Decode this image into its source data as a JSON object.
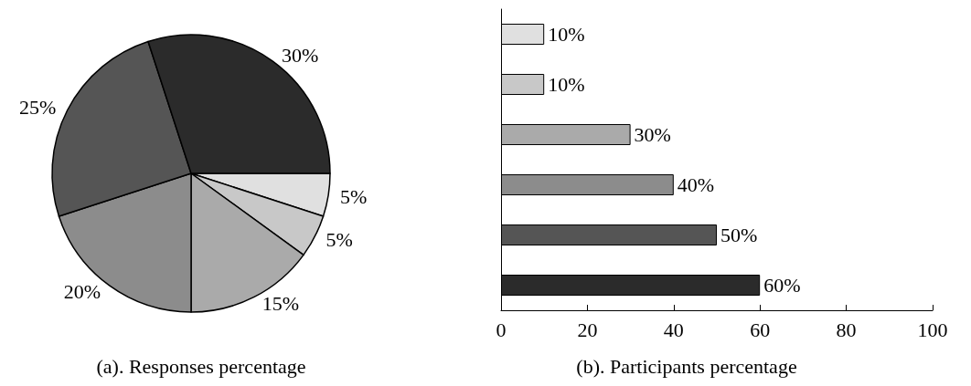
{
  "chart_data": [
    {
      "type": "pie",
      "title": "(a). Responses percentage",
      "categories": [
        null,
        null,
        null,
        null,
        null,
        null
      ],
      "values": [
        5,
        5,
        15,
        20,
        25,
        30
      ],
      "colors": [
        "#e0e0e0",
        "#c8c8c8",
        "#aaaaaa",
        "#8c8c8c",
        "#555555",
        "#2b2b2b"
      ],
      "value_labels": [
        "5%",
        "5%",
        "15%",
        "20%",
        "25%",
        "30%"
      ]
    },
    {
      "type": "bar",
      "title": "(b). Participants percentage",
      "orientation": "horizontal",
      "categories": [
        null,
        null,
        null,
        null,
        null,
        null
      ],
      "values": [
        10,
        10,
        30,
        40,
        50,
        60
      ],
      "colors": [
        "#e0e0e0",
        "#c8c8c8",
        "#aaaaaa",
        "#8c8c8c",
        "#555555",
        "#2b2b2b"
      ],
      "value_labels": [
        "10%",
        "10%",
        "30%",
        "40%",
        "50%",
        "60%"
      ],
      "xlim": [
        0,
        100
      ],
      "xticks": [
        0,
        20,
        40,
        60,
        80,
        100
      ],
      "tick_labels": "x",
      "grid": false
    }
  ]
}
